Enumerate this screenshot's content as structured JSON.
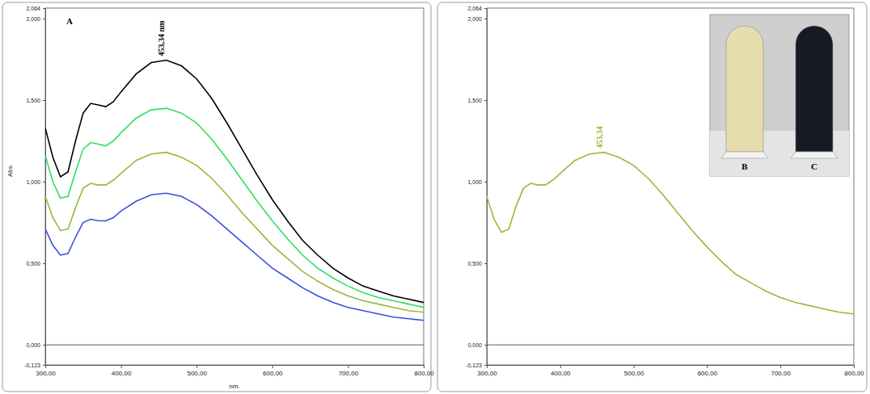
{
  "chart_data": [
    {
      "type": "line",
      "title": "A",
      "x_label": "nm.",
      "y_label": "Abs.",
      "x": [
        300,
        310,
        320,
        330,
        340,
        350,
        360,
        370,
        380,
        390,
        400,
        420,
        440,
        460,
        480,
        500,
        520,
        540,
        560,
        580,
        600,
        620,
        640,
        660,
        680,
        700,
        720,
        740,
        760,
        780,
        800
      ],
      "series": [
        {
          "color": "#000000",
          "values": [
            1.33,
            1.15,
            1.03,
            1.06,
            1.25,
            1.42,
            1.48,
            1.47,
            1.46,
            1.49,
            1.55,
            1.66,
            1.73,
            1.745,
            1.71,
            1.63,
            1.51,
            1.36,
            1.2,
            1.04,
            0.89,
            0.76,
            0.64,
            0.55,
            0.47,
            0.41,
            0.36,
            0.33,
            0.3,
            0.28,
            0.26
          ]
        },
        {
          "color": "#2fe05a",
          "values": [
            1.16,
            1.0,
            0.9,
            0.91,
            1.06,
            1.2,
            1.24,
            1.23,
            1.22,
            1.25,
            1.3,
            1.39,
            1.44,
            1.45,
            1.42,
            1.36,
            1.26,
            1.14,
            1.01,
            0.88,
            0.76,
            0.65,
            0.55,
            0.47,
            0.41,
            0.36,
            0.32,
            0.29,
            0.27,
            0.25,
            0.23
          ]
        },
        {
          "color": "#9ab83a",
          "values": [
            0.91,
            0.78,
            0.7,
            0.71,
            0.84,
            0.96,
            0.99,
            0.98,
            0.98,
            1.01,
            1.05,
            1.13,
            1.17,
            1.18,
            1.15,
            1.1,
            1.02,
            0.92,
            0.81,
            0.71,
            0.61,
            0.53,
            0.45,
            0.39,
            0.34,
            0.3,
            0.27,
            0.25,
            0.23,
            0.21,
            0.2
          ]
        },
        {
          "color": "#3a4fe0",
          "values": [
            0.71,
            0.61,
            0.55,
            0.56,
            0.66,
            0.75,
            0.77,
            0.76,
            0.76,
            0.78,
            0.82,
            0.88,
            0.92,
            0.93,
            0.91,
            0.86,
            0.79,
            0.71,
            0.63,
            0.55,
            0.47,
            0.41,
            0.35,
            0.3,
            0.26,
            0.23,
            0.21,
            0.19,
            0.17,
            0.16,
            0.15
          ]
        }
      ],
      "annotations": [
        {
          "text": "453,34 nm",
          "x": 453.34,
          "color": "#000000"
        }
      ],
      "xlim": [
        300,
        800
      ],
      "xticks": [
        {
          "value": 300,
          "label": "300,00"
        },
        {
          "value": 400,
          "label": "400,00"
        },
        {
          "value": 500,
          "label": "500,00"
        },
        {
          "value": 600,
          "label": "600,00"
        },
        {
          "value": 700,
          "label": "700,00"
        },
        {
          "value": 800,
          "label": "800,00"
        }
      ],
      "ylim": [
        -0.123,
        2.064
      ],
      "yticks": [
        {
          "value": -0.123,
          "label": "-0,123"
        },
        {
          "value": 0,
          "label": "0,000"
        },
        {
          "value": 0.5,
          "label": "0,500"
        },
        {
          "value": 1,
          "label": "1,000"
        },
        {
          "value": 1.5,
          "label": "1,500"
        },
        {
          "value": 2,
          "label": "2,000"
        },
        {
          "value": 2.064,
          "label": "2,064"
        }
      ]
    },
    {
      "type": "line",
      "x": [
        300,
        310,
        320,
        330,
        340,
        350,
        360,
        370,
        380,
        390,
        400,
        420,
        440,
        460,
        480,
        500,
        520,
        540,
        560,
        580,
        600,
        620,
        640,
        660,
        680,
        700,
        720,
        740,
        760,
        780,
        800
      ],
      "series": [
        {
          "color": "#9ab83a",
          "values": [
            0.91,
            0.77,
            0.69,
            0.71,
            0.85,
            0.96,
            0.99,
            0.98,
            0.98,
            1.01,
            1.05,
            1.13,
            1.17,
            1.18,
            1.15,
            1.1,
            1.02,
            0.92,
            0.81,
            0.7,
            0.6,
            0.51,
            0.43,
            0.38,
            0.33,
            0.29,
            0.26,
            0.24,
            0.22,
            0.2,
            0.19
          ]
        }
      ],
      "annotations": [
        {
          "text": "453,34",
          "x": 453.34,
          "color": "#9ab83a"
        }
      ],
      "inset_labels": [
        "B",
        "C"
      ],
      "xlim": [
        300,
        800
      ],
      "xticks": [
        {
          "value": 300,
          "label": "300,00"
        },
        {
          "value": 400,
          "label": "400,00"
        },
        {
          "value": 500,
          "label": "500,00"
        },
        {
          "value": 600,
          "label": "600,00"
        },
        {
          "value": 700,
          "label": "700,00"
        },
        {
          "value": 800,
          "label": "800,00"
        }
      ],
      "ylim": [
        -0.123,
        2.064
      ],
      "yticks": [
        {
          "value": -0.123,
          "label": "-0,123"
        },
        {
          "value": 0,
          "label": "0,000"
        },
        {
          "value": 0.5,
          "label": "0,500"
        },
        {
          "value": 1,
          "label": "1,000"
        },
        {
          "value": 1.5,
          "label": "1,500"
        },
        {
          "value": 2,
          "label": "2,000"
        },
        {
          "value": 2.064,
          "label": "2,064"
        }
      ]
    }
  ]
}
